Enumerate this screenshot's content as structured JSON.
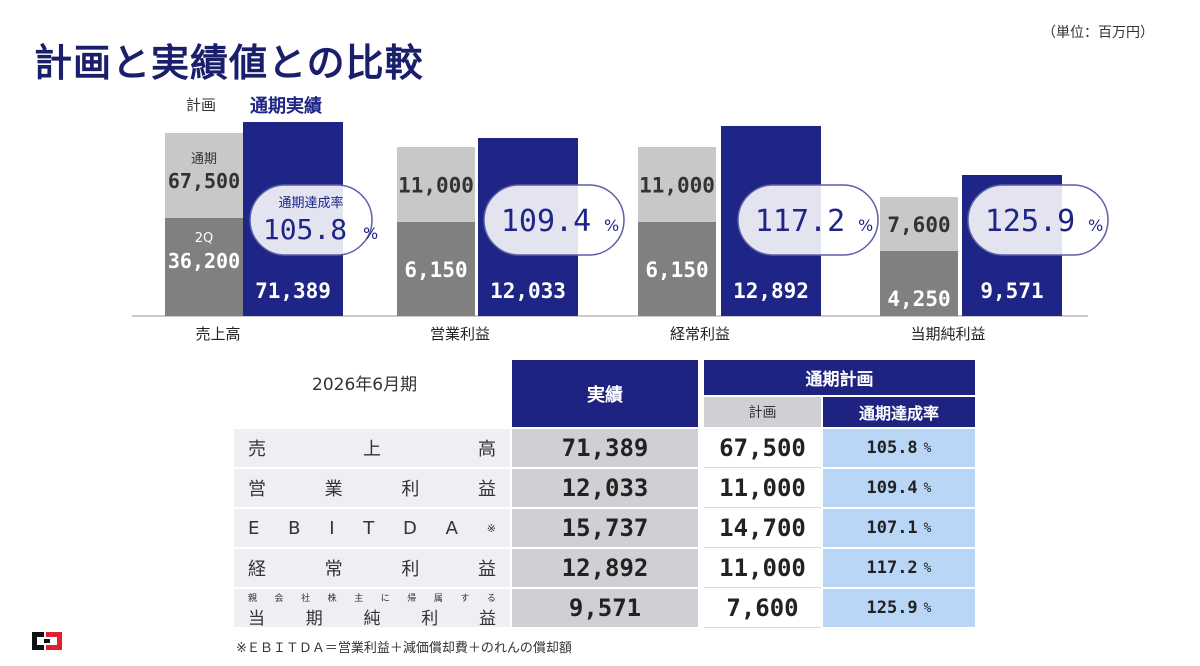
{
  "header": {
    "title": "計画と実績値との比較",
    "unit": "（単位：百万円）"
  },
  "legend": {
    "plan": "計画",
    "actual": "通期実績"
  },
  "chart_data": {
    "type": "bar",
    "categories": [
      "売上高",
      "営業利益",
      "経常利益",
      "当期純利益"
    ],
    "series": [
      {
        "name": "計画",
        "values": [
          67500,
          11000,
          11000,
          7600
        ]
      },
      {
        "name": "通期実績",
        "values": [
          71389,
          12033,
          12892,
          9571
        ]
      }
    ],
    "plan_2q": [
      36200,
      6150,
      6150,
      4250
    ],
    "achievement_rate": [
      "105.8",
      "109.4",
      "117.2",
      "125.9"
    ],
    "labels": {
      "plan_full_prefix": "通期",
      "plan_2q_prefix": "2Q",
      "rate_title": "通期達成率",
      "percent": "%"
    },
    "plan_full_display": [
      "67,500",
      "11,000",
      "11,000",
      "7,600"
    ],
    "plan_2q_display": [
      "36,200",
      "6,150",
      "6,150",
      "4,250"
    ],
    "actual_display": [
      "71,389",
      "12,033",
      "12,892",
      "9,571"
    ],
    "colors": {
      "plan_full": "#c8c8c8",
      "plan_2q": "#808080",
      "actual": "#1e2587",
      "rate_bubble_border": "#5a5fa8"
    }
  },
  "table": {
    "period": "2026年6月期",
    "head_actual": "実績",
    "head_plan": "通期計画",
    "sub_plan": "計画",
    "sub_rate": "通期達成率",
    "pct": "%",
    "rows": [
      {
        "label_chars": [
          "売",
          "上",
          "高"
        ],
        "actual": "71,389",
        "plan": "67,500",
        "rate": "105.8"
      },
      {
        "label_chars": [
          "営",
          "業",
          "利",
          "益"
        ],
        "actual": "12,033",
        "plan": "11,000",
        "rate": "109.4"
      },
      {
        "label_chars": [
          "E",
          "B",
          "I",
          "T",
          "D",
          "A",
          "※"
        ],
        "actual": "15,737",
        "plan": "14,700",
        "rate": "107.1"
      },
      {
        "label_chars": [
          "経",
          "常",
          "利",
          "益"
        ],
        "actual": "12,892",
        "plan": "11,000",
        "rate": "117.2"
      },
      {
        "label_top_chars": [
          "親",
          "会",
          "社",
          "株",
          "主",
          "に",
          "帰",
          "属",
          "す",
          "る"
        ],
        "label_chars": [
          "当",
          "期",
          "純",
          "利",
          "益"
        ],
        "actual": "9,571",
        "plan": "7,600",
        "rate": "125.9"
      }
    ]
  },
  "footnote": "※ＥＢＩＴＤＡ＝営業利益＋減価償却費＋のれんの償却額"
}
